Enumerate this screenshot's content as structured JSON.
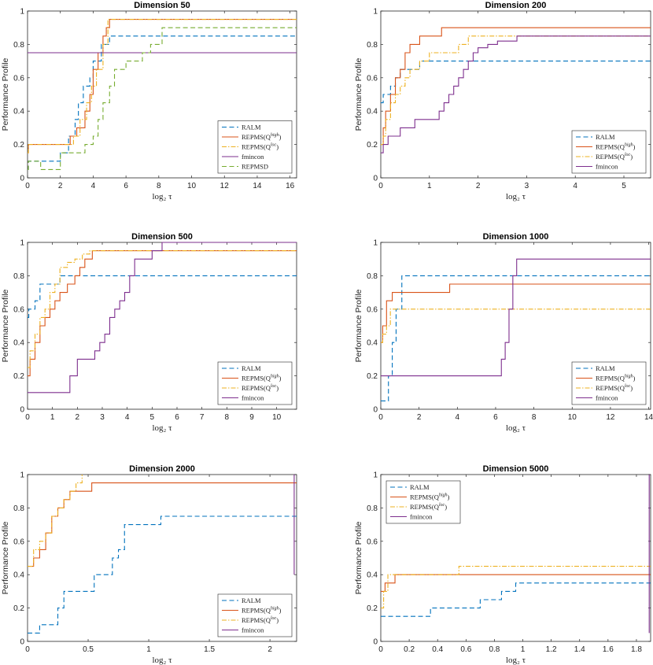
{
  "styles": {
    "RALM": {
      "color": "#0072BD",
      "dash": "6,3.5"
    },
    "REPMS_high": {
      "color": "#D95319",
      "dash": ""
    },
    "REPMS_loc": {
      "color": "#EDB120",
      "dash": "6,2,1.5,2"
    },
    "fmincon": {
      "color": "#7E2F8E",
      "dash": ""
    },
    "REPMSD": {
      "color": "#77AC30",
      "dash": "6,3.5"
    }
  },
  "chart_data": [
    {
      "type": "line",
      "step": true,
      "title": "Dimension 50",
      "xlabel": "log₂ τ",
      "ylabel": "Performance Profile",
      "xlim": [
        0,
        16.4
      ],
      "ylim": [
        0,
        1
      ],
      "xticks": [
        0,
        2,
        4,
        6,
        8,
        10,
        12,
        14,
        16
      ],
      "yticks": [
        0,
        0.2,
        0.4,
        0.6,
        0.8,
        1
      ],
      "legend_position": "bottom-right",
      "series": [
        {
          "name": "RALM",
          "legend_main": "RALM",
          "legend_sup": "",
          "style": "RALM",
          "x": [
            0,
            0.05,
            0.8,
            2.0,
            2.5,
            2.9,
            3.1,
            3.4,
            3.8,
            4.0,
            4.5,
            5.0,
            16.4
          ],
          "y": [
            0.05,
            0.1,
            0.1,
            0.15,
            0.25,
            0.35,
            0.45,
            0.55,
            0.6,
            0.7,
            0.8,
            0.85,
            0.85
          ]
        },
        {
          "name": "REPMS(Q^high)",
          "legend_main": "REPMS(Q",
          "legend_sup": "high",
          "style": "REPMS_high",
          "x": [
            0,
            0.05,
            0.5,
            2.6,
            3.0,
            3.5,
            3.8,
            4.0,
            4.3,
            4.6,
            4.8,
            5.0,
            16.4
          ],
          "y": [
            0.15,
            0.2,
            0.2,
            0.25,
            0.3,
            0.4,
            0.5,
            0.65,
            0.75,
            0.85,
            0.9,
            0.95,
            0.95
          ]
        },
        {
          "name": "REPMS(Q^loc)",
          "legend_main": "REPMS(Q",
          "legend_sup": "loc",
          "style": "REPMS_loc",
          "x": [
            0,
            0.05,
            0.5,
            2.8,
            3.2,
            3.6,
            3.9,
            4.2,
            4.6,
            4.9,
            16.4
          ],
          "y": [
            0.15,
            0.2,
            0.2,
            0.25,
            0.35,
            0.45,
            0.55,
            0.65,
            0.8,
            0.95,
            0.95
          ]
        },
        {
          "name": "fmincon",
          "legend_main": "fmincon",
          "legend_sup": "",
          "style": "fmincon",
          "x": [
            0,
            16.4
          ],
          "y": [
            0.75,
            0.75
          ]
        },
        {
          "name": "REPMSD",
          "legend_main": "REPMSD",
          "legend_sup": "",
          "style": "REPMSD",
          "x": [
            0,
            0.05,
            0.8,
            2.0,
            3.0,
            3.5,
            4.0,
            4.3,
            4.6,
            5.0,
            5.3,
            6.0,
            7.0,
            7.5,
            8.2,
            16.4
          ],
          "y": [
            0.05,
            0.1,
            0.05,
            0.15,
            0.15,
            0.2,
            0.25,
            0.35,
            0.45,
            0.55,
            0.65,
            0.7,
            0.75,
            0.8,
            0.9,
            0.9
          ]
        }
      ]
    },
    {
      "type": "line",
      "step": true,
      "title": "Dimension 200",
      "xlabel": "log₂ τ",
      "ylabel": "Performance Profile",
      "xlim": [
        0,
        5.55
      ],
      "ylim": [
        0,
        1
      ],
      "xticks": [
        0,
        1,
        2,
        3,
        4,
        5
      ],
      "yticks": [
        0,
        0.2,
        0.4,
        0.6,
        0.8,
        1
      ],
      "legend_position": "bottom-right",
      "series": [
        {
          "name": "RALM",
          "legend_main": "RALM",
          "legend_sup": "",
          "style": "RALM",
          "x": [
            0,
            0.05,
            0.2,
            0.3,
            0.4,
            0.6,
            0.8,
            5.55
          ],
          "y": [
            0.45,
            0.5,
            0.55,
            0.6,
            0.65,
            0.65,
            0.7,
            0.7
          ]
        },
        {
          "name": "REPMS(Q^high)",
          "legend_main": "REPMS(Q",
          "legend_sup": "high",
          "style": "REPMS_high",
          "x": [
            0,
            0.05,
            0.1,
            0.2,
            0.3,
            0.4,
            0.5,
            0.6,
            0.8,
            1.25,
            5.55
          ],
          "y": [
            0.2,
            0.3,
            0.4,
            0.5,
            0.6,
            0.65,
            0.75,
            0.8,
            0.85,
            0.9,
            0.9
          ]
        },
        {
          "name": "REPMS(Q^loc)",
          "legend_main": "REPMS(Q",
          "legend_sup": "loc",
          "style": "REPMS_loc",
          "x": [
            0,
            0.05,
            0.1,
            0.2,
            0.3,
            0.4,
            0.5,
            0.6,
            0.8,
            1.0,
            1.6,
            1.8,
            5.55
          ],
          "y": [
            0.2,
            0.25,
            0.35,
            0.45,
            0.5,
            0.55,
            0.6,
            0.65,
            0.7,
            0.75,
            0.8,
            0.85,
            0.85
          ]
        },
        {
          "name": "fmincon",
          "legend_main": "fmincon",
          "legend_sup": "",
          "style": "fmincon",
          "x": [
            0,
            0.05,
            0.15,
            0.4,
            0.7,
            1.2,
            1.3,
            1.4,
            1.5,
            1.6,
            1.7,
            1.8,
            1.9,
            2.0,
            2.2,
            2.4,
            2.8,
            5.55
          ],
          "y": [
            0.15,
            0.2,
            0.25,
            0.3,
            0.35,
            0.4,
            0.45,
            0.5,
            0.55,
            0.6,
            0.65,
            0.7,
            0.75,
            0.78,
            0.8,
            0.82,
            0.85,
            0.85
          ]
        }
      ]
    },
    {
      "type": "line",
      "step": true,
      "title": "Dimension 500",
      "xlabel": "log₂ τ",
      "ylabel": "Performance Profile",
      "xlim": [
        0,
        10.8
      ],
      "ylim": [
        0,
        1
      ],
      "xticks": [
        0,
        1,
        2,
        3,
        4,
        5,
        6,
        7,
        8,
        9,
        10
      ],
      "yticks": [
        0,
        0.2,
        0.4,
        0.6,
        0.8,
        1
      ],
      "legend_position": "bottom-right",
      "series": [
        {
          "name": "RALM",
          "legend_main": "RALM",
          "legend_sup": "",
          "style": "RALM",
          "x": [
            0,
            0.05,
            0.3,
            0.5,
            1.1,
            1.3,
            10.8
          ],
          "y": [
            0.55,
            0.6,
            0.65,
            0.75,
            0.75,
            0.8,
            0.8
          ]
        },
        {
          "name": "REPMS(Q^high)",
          "legend_main": "REPMS(Q",
          "legend_sup": "high",
          "style": "REPMS_high",
          "x": [
            0,
            0.1,
            0.3,
            0.5,
            0.7,
            0.9,
            1.1,
            1.3,
            1.6,
            1.9,
            2.1,
            2.3,
            2.6,
            10.8
          ],
          "y": [
            0.2,
            0.3,
            0.4,
            0.5,
            0.55,
            0.6,
            0.65,
            0.7,
            0.75,
            0.8,
            0.85,
            0.9,
            0.95,
            0.95
          ]
        },
        {
          "name": "REPMS(Q^loc)",
          "legend_main": "REPMS(Q",
          "legend_sup": "loc",
          "style": "REPMS_loc",
          "x": [
            0,
            0.1,
            0.3,
            0.5,
            0.7,
            0.9,
            1.1,
            1.3,
            1.6,
            1.9,
            2.2,
            2.5,
            10.8
          ],
          "y": [
            0.25,
            0.35,
            0.45,
            0.55,
            0.6,
            0.7,
            0.75,
            0.85,
            0.88,
            0.9,
            0.93,
            0.95,
            0.95
          ]
        },
        {
          "name": "fmincon",
          "legend_main": "fmincon",
          "legend_sup": "",
          "style": "fmincon",
          "x": [
            0,
            1.7,
            2.0,
            2.7,
            2.9,
            3.1,
            3.3,
            3.5,
            3.7,
            3.9,
            4.1,
            4.3,
            5.0,
            5.4,
            10.8
          ],
          "y": [
            0.1,
            0.2,
            0.3,
            0.35,
            0.4,
            0.45,
            0.55,
            0.6,
            0.65,
            0.7,
            0.8,
            0.9,
            0.95,
            1.0,
            1.0
          ]
        }
      ]
    },
    {
      "type": "line",
      "step": true,
      "title": "Dimension 1000",
      "xlabel": "log₂ τ",
      "ylabel": "Performance Profile",
      "xlim": [
        0,
        14.1
      ],
      "ylim": [
        0,
        1
      ],
      "xticks": [
        0,
        2,
        4,
        6,
        8,
        10,
        12,
        14
      ],
      "yticks": [
        0,
        0.2,
        0.4,
        0.6,
        0.8,
        1
      ],
      "legend_position": "bottom-right",
      "series": [
        {
          "name": "RALM",
          "legend_main": "RALM",
          "legend_sup": "",
          "style": "RALM",
          "x": [
            0,
            0.4,
            0.6,
            0.8,
            1.1,
            14.1
          ],
          "y": [
            0.05,
            0.2,
            0.4,
            0.6,
            0.8,
            0.8
          ]
        },
        {
          "name": "REPMS(Q^high)",
          "legend_main": "REPMS(Q",
          "legend_sup": "high",
          "style": "REPMS_high",
          "x": [
            0,
            0.1,
            0.3,
            0.6,
            3.6,
            14.1
          ],
          "y": [
            0.4,
            0.5,
            0.65,
            0.7,
            0.75,
            0.75
          ]
        },
        {
          "name": "REPMS(Q^loc)",
          "legend_main": "REPMS(Q",
          "legend_sup": "loc",
          "style": "REPMS_loc",
          "x": [
            0,
            0.1,
            0.3,
            0.5,
            14.1
          ],
          "y": [
            0.4,
            0.45,
            0.5,
            0.6,
            0.6
          ]
        },
        {
          "name": "fmincon",
          "legend_main": "fmincon",
          "legend_sup": "",
          "style": "fmincon",
          "x": [
            0,
            6.3,
            6.5,
            6.7,
            6.9,
            7.1,
            14.1
          ],
          "y": [
            0.2,
            0.3,
            0.4,
            0.6,
            0.8,
            0.9,
            0.9
          ]
        }
      ]
    },
    {
      "type": "line",
      "step": true,
      "title": "Dimension 2000",
      "xlabel": "log₂ τ",
      "ylabel": "Performance Profile",
      "xlim": [
        0,
        2.22
      ],
      "ylim": [
        0,
        1
      ],
      "xticks": [
        0,
        0.5,
        1,
        1.5,
        2
      ],
      "yticks": [
        0,
        0.2,
        0.4,
        0.6,
        0.8,
        1
      ],
      "legend_position": "bottom-right",
      "series": [
        {
          "name": "RALM",
          "legend_main": "RALM",
          "legend_sup": "",
          "style": "RALM",
          "x": [
            0,
            0.1,
            0.25,
            0.3,
            0.55,
            0.7,
            0.75,
            0.8,
            1.1,
            1.5,
            2.22
          ],
          "y": [
            0.05,
            0.1,
            0.2,
            0.3,
            0.4,
            0.5,
            0.55,
            0.7,
            0.75,
            0.75,
            0.75
          ]
        },
        {
          "name": "REPMS(Q^high)",
          "legend_main": "REPMS(Q",
          "legend_sup": "high",
          "style": "REPMS_high",
          "x": [
            0,
            0.05,
            0.1,
            0.15,
            0.2,
            0.25,
            0.3,
            0.35,
            0.53,
            2.22
          ],
          "y": [
            0.45,
            0.5,
            0.55,
            0.65,
            0.75,
            0.8,
            0.85,
            0.9,
            0.95,
            0.95
          ]
        },
        {
          "name": "REPMS(Q^loc)",
          "legend_main": "REPMS(Q",
          "legend_sup": "loc",
          "style": "REPMS_loc",
          "x": [
            0,
            0.05,
            0.1,
            0.15,
            0.2,
            0.25,
            0.3,
            0.35,
            0.4,
            0.45
          ],
          "y": [
            0.45,
            0.55,
            0.6,
            0.65,
            0.75,
            0.8,
            0.85,
            0.9,
            0.95,
            1.0
          ]
        },
        {
          "name": "fmincon",
          "legend_main": "fmincon",
          "legend_sup": "",
          "style": "fmincon",
          "x": [
            2.2,
            2.2
          ],
          "y": [
            0.4,
            1.0
          ]
        }
      ]
    },
    {
      "type": "line",
      "step": true,
      "title": "Dimension 5000",
      "xlabel": "log₂ τ",
      "ylabel": "Performance Profile",
      "xlim": [
        0,
        1.9
      ],
      "ylim": [
        0,
        1
      ],
      "xticks": [
        0,
        0.2,
        0.4,
        0.6,
        0.8,
        1,
        1.2,
        1.4,
        1.6,
        1.8
      ],
      "yticks": [
        0,
        0.2,
        0.4,
        0.6,
        0.8,
        1
      ],
      "legend_position": "top-left",
      "series": [
        {
          "name": "RALM",
          "legend_main": "RALM",
          "legend_sup": "",
          "style": "RALM",
          "x": [
            0,
            0.35,
            0.55,
            0.7,
            0.85,
            0.95,
            1.9
          ],
          "y": [
            0.15,
            0.2,
            0.2,
            0.25,
            0.3,
            0.35,
            0.35
          ]
        },
        {
          "name": "REPMS(Q^high)",
          "legend_main": "REPMS(Q",
          "legend_sup": "high",
          "style": "REPMS_high",
          "x": [
            0,
            0.03,
            0.1,
            1.9
          ],
          "y": [
            0.3,
            0.35,
            0.4,
            0.4
          ]
        },
        {
          "name": "REPMS(Q^loc)",
          "legend_main": "REPMS(Q",
          "legend_sup": "loc",
          "style": "REPMS_loc",
          "x": [
            0,
            0.02,
            0.05,
            0.55,
            1.9
          ],
          "y": [
            0.2,
            0.3,
            0.4,
            0.45,
            0.45
          ]
        },
        {
          "name": "fmincon",
          "legend_main": "fmincon",
          "legend_sup": "",
          "style": "fmincon",
          "x": [
            1.89,
            1.89
          ],
          "y": [
            0.05,
            1.0
          ]
        }
      ]
    }
  ]
}
